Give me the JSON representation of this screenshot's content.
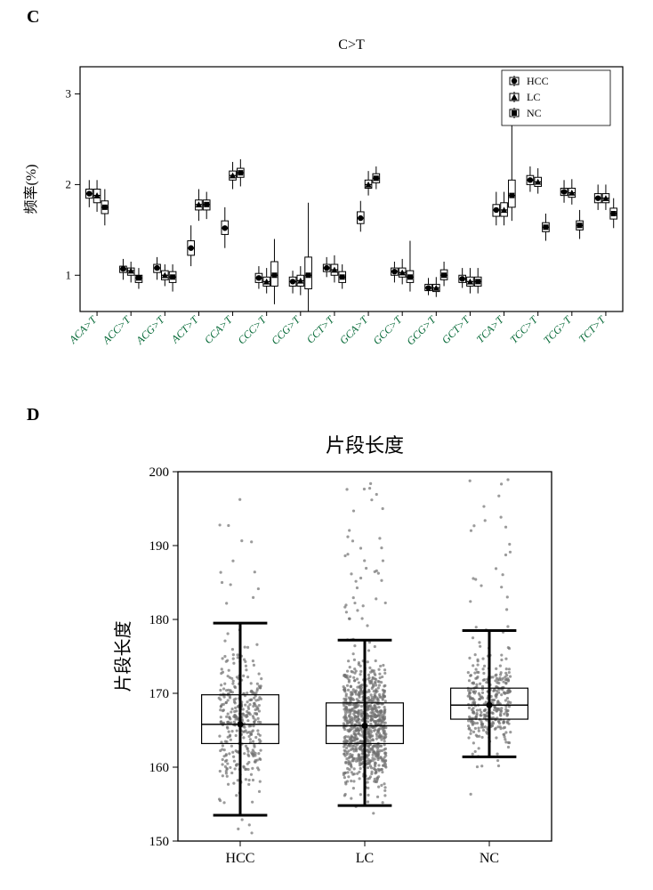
{
  "panel_letters": {
    "c": "C",
    "d": "D"
  },
  "panelC": {
    "type": "boxplot-grouped",
    "title": "C>T",
    "title_fontsize": 16,
    "ylabel": "频率(%)",
    "label_fontsize": 16,
    "ylim": [
      0.6,
      3.3
    ],
    "yticks": [
      1,
      2,
      3
    ],
    "background": "#ffffff",
    "frame_color": "#000000",
    "box_fill": "#ffffff",
    "box_stroke": "#000000",
    "marker_color": "#000000",
    "xtick_label_color": "#006633",
    "xtick_fontsize": 12,
    "legend": {
      "items": [
        {
          "label": "HCC",
          "marker": "circle"
        },
        {
          "label": "LC",
          "marker": "triangle"
        },
        {
          "label": "NC",
          "marker": "square"
        }
      ],
      "fontsize": 12
    },
    "order": [
      "HCC",
      "LC",
      "NC"
    ],
    "categories": [
      "ACA>T",
      "ACC>T",
      "ACG>T",
      "ACT>T",
      "CCA>T",
      "CCC>T",
      "CCG>T",
      "CCT>T",
      "GCA>T",
      "GCC>T",
      "GCG>T",
      "GCT>T",
      "TCA>T",
      "TCC>T",
      "TCG>T",
      "TCT>T"
    ],
    "data": {
      "ACA>T": {
        "HCC": {
          "min": 1.75,
          "q1": 1.85,
          "med": 1.9,
          "q3": 1.95,
          "max": 2.05
        },
        "LC": {
          "min": 1.7,
          "q1": 1.8,
          "med": 1.88,
          "q3": 1.95,
          "max": 2.05
        },
        "NC": {
          "min": 1.55,
          "q1": 1.68,
          "med": 1.75,
          "q3": 1.82,
          "max": 1.95
        }
      },
      "ACC>T": {
        "HCC": {
          "min": 0.95,
          "q1": 1.03,
          "med": 1.07,
          "q3": 1.1,
          "max": 1.18
        },
        "LC": {
          "min": 0.92,
          "q1": 1.0,
          "med": 1.05,
          "q3": 1.08,
          "max": 1.15
        },
        "NC": {
          "min": 0.85,
          "q1": 0.92,
          "med": 0.97,
          "q3": 1.0,
          "max": 1.08
        }
      },
      "ACG>T": {
        "HCC": {
          "min": 0.95,
          "q1": 1.03,
          "med": 1.08,
          "q3": 1.12,
          "max": 1.2
        },
        "LC": {
          "min": 0.88,
          "q1": 0.95,
          "med": 1.0,
          "q3": 1.05,
          "max": 1.12
        },
        "NC": {
          "min": 0.82,
          "q1": 0.92,
          "med": 0.98,
          "q3": 1.04,
          "max": 1.12
        }
      },
      "ACT>T": {
        "HCC": {
          "min": 1.1,
          "q1": 1.22,
          "med": 1.3,
          "q3": 1.38,
          "max": 1.55
        },
        "LC": {
          "min": 1.6,
          "q1": 1.72,
          "med": 1.78,
          "q3": 1.83,
          "max": 1.95
        },
        "NC": {
          "min": 1.62,
          "q1": 1.72,
          "med": 1.78,
          "q3": 1.83,
          "max": 1.92
        }
      },
      "CCA>T": {
        "HCC": {
          "min": 1.3,
          "q1": 1.45,
          "med": 1.52,
          "q3": 1.6,
          "max": 1.75
        },
        "LC": {
          "min": 1.95,
          "q1": 2.05,
          "med": 2.1,
          "q3": 2.15,
          "max": 2.25
        },
        "NC": {
          "min": 1.98,
          "q1": 2.08,
          "med": 2.13,
          "q3": 2.18,
          "max": 2.28
        }
      },
      "CCC>T": {
        "HCC": {
          "min": 0.85,
          "q1": 0.92,
          "med": 0.97,
          "q3": 1.02,
          "max": 1.1
        },
        "LC": {
          "min": 0.8,
          "q1": 0.88,
          "med": 0.93,
          "q3": 0.98,
          "max": 1.08
        },
        "NC": {
          "min": 0.68,
          "q1": 0.88,
          "med": 1.0,
          "q3": 1.15,
          "max": 1.4
        }
      },
      "CCG>T": {
        "HCC": {
          "min": 0.8,
          "q1": 0.88,
          "med": 0.93,
          "q3": 0.98,
          "max": 1.05
        },
        "LC": {
          "min": 0.78,
          "q1": 0.88,
          "med": 0.94,
          "q3": 1.0,
          "max": 1.1
        },
        "NC": {
          "min": 0.6,
          "q1": 0.85,
          "med": 1.0,
          "q3": 1.2,
          "max": 1.8
        }
      },
      "CCT>T": {
        "HCC": {
          "min": 0.98,
          "q1": 1.04,
          "med": 1.08,
          "q3": 1.12,
          "max": 1.2
        },
        "LC": {
          "min": 0.92,
          "q1": 1.0,
          "med": 1.06,
          "q3": 1.12,
          "max": 1.22
        },
        "NC": {
          "min": 0.85,
          "q1": 0.92,
          "med": 0.98,
          "q3": 1.04,
          "max": 1.12
        }
      },
      "GCA>T": {
        "HCC": {
          "min": 1.48,
          "q1": 1.57,
          "med": 1.63,
          "q3": 1.7,
          "max": 1.82
        },
        "LC": {
          "min": 1.88,
          "q1": 1.96,
          "med": 2.0,
          "q3": 2.05,
          "max": 2.15
        },
        "NC": {
          "min": 1.95,
          "q1": 2.02,
          "med": 2.07,
          "q3": 2.12,
          "max": 2.2
        }
      },
      "GCC>T": {
        "HCC": {
          "min": 0.92,
          "q1": 1.0,
          "med": 1.04,
          "q3": 1.08,
          "max": 1.15
        },
        "LC": {
          "min": 0.9,
          "q1": 0.98,
          "med": 1.03,
          "q3": 1.08,
          "max": 1.18
        },
        "NC": {
          "min": 0.82,
          "q1": 0.92,
          "med": 0.98,
          "q3": 1.05,
          "max": 1.38
        }
      },
      "GCG>T": {
        "HCC": {
          "min": 0.78,
          "q1": 0.83,
          "med": 0.86,
          "q3": 0.9,
          "max": 0.97
        },
        "LC": {
          "min": 0.76,
          "q1": 0.82,
          "med": 0.86,
          "q3": 0.9,
          "max": 0.98
        },
        "NC": {
          "min": 0.88,
          "q1": 0.95,
          "med": 1.0,
          "q3": 1.06,
          "max": 1.15
        }
      },
      "GCT>T": {
        "HCC": {
          "min": 0.86,
          "q1": 0.92,
          "med": 0.96,
          "q3": 1.0,
          "max": 1.08
        },
        "LC": {
          "min": 0.8,
          "q1": 0.88,
          "med": 0.93,
          "q3": 0.98,
          "max": 1.08
        },
        "NC": {
          "min": 0.8,
          "q1": 0.88,
          "med": 0.93,
          "q3": 0.98,
          "max": 1.08
        }
      },
      "TCA>T": {
        "HCC": {
          "min": 1.55,
          "q1": 1.65,
          "med": 1.72,
          "q3": 1.78,
          "max": 1.92
        },
        "LC": {
          "min": 1.55,
          "q1": 1.65,
          "med": 1.72,
          "q3": 1.8,
          "max": 1.92
        },
        "NC": {
          "min": 1.6,
          "q1": 1.75,
          "med": 1.88,
          "q3": 2.05,
          "max": 2.75
        }
      },
      "TCC>T": {
        "HCC": {
          "min": 1.92,
          "q1": 2.0,
          "med": 2.05,
          "q3": 2.1,
          "max": 2.2
        },
        "LC": {
          "min": 1.9,
          "q1": 1.98,
          "med": 2.03,
          "q3": 2.08,
          "max": 2.18
        },
        "NC": {
          "min": 1.38,
          "q1": 1.48,
          "med": 1.53,
          "q3": 1.58,
          "max": 1.68
        }
      },
      "TCG>T": {
        "HCC": {
          "min": 1.8,
          "q1": 1.88,
          "med": 1.92,
          "q3": 1.96,
          "max": 2.05
        },
        "LC": {
          "min": 1.78,
          "q1": 1.86,
          "med": 1.91,
          "q3": 1.96,
          "max": 2.06
        },
        "NC": {
          "min": 1.4,
          "q1": 1.5,
          "med": 1.55,
          "q3": 1.6,
          "max": 1.72
        }
      },
      "TCT>T": {
        "HCC": {
          "min": 1.72,
          "q1": 1.8,
          "med": 1.85,
          "q3": 1.9,
          "max": 2.0
        },
        "LC": {
          "min": 1.72,
          "q1": 1.8,
          "med": 1.85,
          "q3": 1.9,
          "max": 2.0
        },
        "NC": {
          "min": 1.52,
          "q1": 1.62,
          "med": 1.68,
          "q3": 1.74,
          "max": 1.85
        }
      }
    }
  },
  "panelD": {
    "type": "boxplot-jitter",
    "title": "片段长度",
    "title_fontsize": 22,
    "ylabel": "片段长度",
    "label_fontsize": 20,
    "xtick_fontsize": 16,
    "ylim": [
      150,
      200
    ],
    "yticks": [
      150,
      160,
      170,
      180,
      190,
      200
    ],
    "background": "#ffffff",
    "frame_color": "#000000",
    "box_fill": "#ffffff",
    "box_stroke": "#000000",
    "errorbar_stroke": "#000000",
    "errorbar_width": 3,
    "point_color": "#707070",
    "point_radius": 1.6,
    "point_opacity": 0.7,
    "categories": [
      "HCC",
      "LC",
      "NC"
    ],
    "jitter_width": 0.55,
    "seed": 4242,
    "data": {
      "HCC": {
        "n": 360,
        "min": 151,
        "q1": 163.2,
        "med": 165.8,
        "q3": 169.8,
        "max": 197.5,
        "sd_lo": 153.5,
        "sd_hi": 179.5,
        "mean": 165.8
      },
      "LC": {
        "n": 900,
        "min": 151,
        "q1": 163.2,
        "med": 165.6,
        "q3": 168.7,
        "max": 199.0,
        "sd_lo": 154.8,
        "sd_hi": 177.2,
        "mean": 165.6
      },
      "NC": {
        "n": 360,
        "min": 154,
        "q1": 166.5,
        "med": 168.4,
        "q3": 170.7,
        "max": 199.0,
        "sd_lo": 161.4,
        "sd_hi": 178.5,
        "mean": 168.4
      }
    }
  }
}
